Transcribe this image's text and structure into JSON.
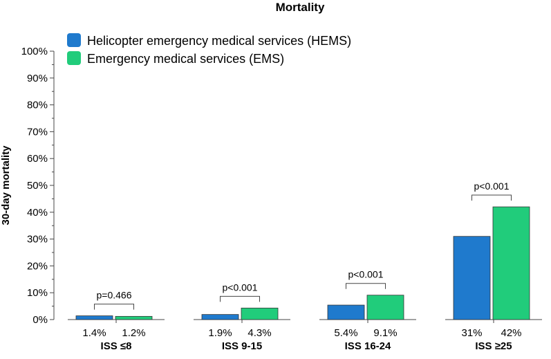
{
  "chart_data": {
    "type": "bar",
    "title": "Mortality",
    "ylabel": "30-day mortality",
    "xlabel": "",
    "ylim": [
      0,
      100
    ],
    "yticks": [
      "0%",
      "10%",
      "20%",
      "30%",
      "40%",
      "50%",
      "60%",
      "70%",
      "80%",
      "90%",
      "100%"
    ],
    "categories": [
      "ISS ≤8",
      "ISS 9-15",
      "ISS 16-24",
      "ISS ≥25"
    ],
    "series": [
      {
        "name": "Helicopter emergency medical services (HEMS)",
        "color": "#1f7acd",
        "values": [
          1.4,
          1.9,
          5.4,
          31
        ],
        "labels": [
          "1.4%",
          "1.9%",
          "5.4%",
          "31%"
        ]
      },
      {
        "name": "Emergency medical services (EMS)",
        "color": "#21cc7b",
        "values": [
          1.2,
          4.3,
          9.1,
          42
        ],
        "labels": [
          "1.2%",
          "4.3%",
          "9.1%",
          "42%"
        ]
      }
    ],
    "p_values": [
      "p=0.466",
      "p<0.001",
      "p<0.001",
      "p<0.001"
    ],
    "legend_position": "top-left",
    "grid": false
  }
}
